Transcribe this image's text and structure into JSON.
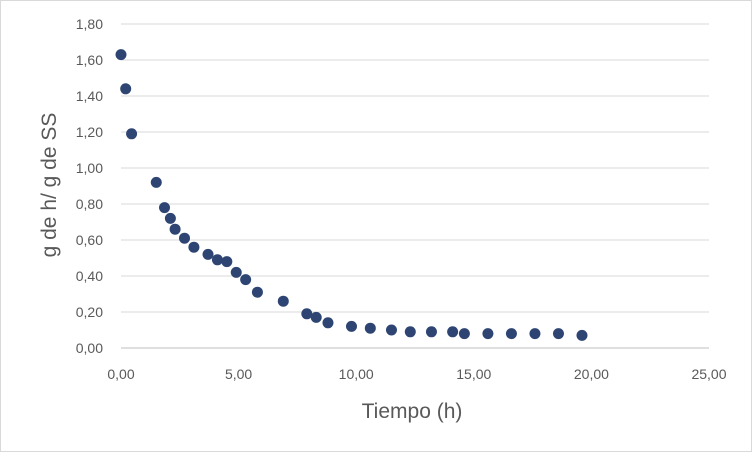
{
  "chart_data": {
    "type": "scatter",
    "title": "",
    "xlabel": "Tiempo (h)",
    "ylabel": "g de h/ g de SS",
    "xlim": [
      0,
      25
    ],
    "ylim": [
      0,
      1.8
    ],
    "xticks": [
      "0,00",
      "5,00",
      "10,00",
      "15,00",
      "20,00",
      "25,00"
    ],
    "yticks": [
      "0,00",
      "0,20",
      "0,40",
      "0,60",
      "0,80",
      "1,00",
      "1,20",
      "1,40",
      "1,60",
      "1,80"
    ],
    "grid": "horizontal",
    "legend": "none",
    "marker_color": "#2E4573",
    "series": [
      {
        "x": [
          0.0,
          0.2,
          0.45,
          1.5,
          1.85,
          2.1,
          2.3,
          2.7,
          3.1,
          3.7,
          4.1,
          4.5,
          4.9,
          5.3,
          5.8,
          6.9,
          7.9,
          8.3,
          8.8,
          9.8,
          10.6,
          11.5,
          12.3,
          13.2,
          14.1,
          14.6,
          15.6,
          16.6,
          17.6,
          18.6,
          19.6
        ],
        "y": [
          1.63,
          1.44,
          1.19,
          0.92,
          0.78,
          0.72,
          0.66,
          0.61,
          0.56,
          0.52,
          0.49,
          0.48,
          0.42,
          0.38,
          0.31,
          0.26,
          0.19,
          0.17,
          0.14,
          0.12,
          0.11,
          0.1,
          0.09,
          0.09,
          0.09,
          0.08,
          0.08,
          0.08,
          0.08,
          0.08,
          0.07
        ]
      }
    ]
  }
}
